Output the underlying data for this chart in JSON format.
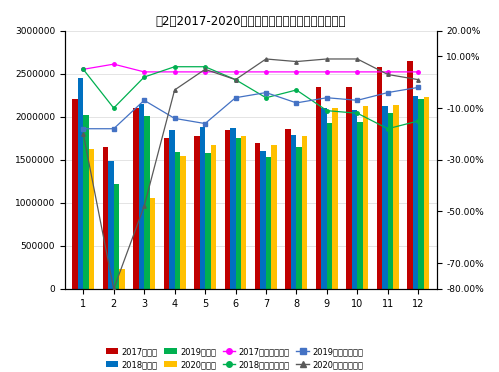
{
  "title": "图2：2017-2020年月度乘用车销量及同比变化情况",
  "months": [
    1,
    2,
    3,
    4,
    5,
    6,
    7,
    8,
    9,
    10,
    11,
    12
  ],
  "sales_2017": [
    2200000,
    1650000,
    2100000,
    1750000,
    1780000,
    1850000,
    1700000,
    1860000,
    2350000,
    2350000,
    2580000,
    2650000
  ],
  "sales_2018": [
    2450000,
    1480000,
    2150000,
    1850000,
    1880000,
    1870000,
    1600000,
    1790000,
    2100000,
    2080000,
    2120000,
    2240000
  ],
  "sales_2019": [
    2020000,
    1220000,
    2010000,
    1590000,
    1580000,
    1750000,
    1530000,
    1650000,
    1930000,
    1940000,
    2040000,
    2200000
  ],
  "sales_2020": [
    1630000,
    230000,
    1060000,
    1540000,
    1670000,
    1780000,
    1670000,
    1780000,
    2100000,
    2120000,
    2130000,
    2230000
  ],
  "yoy_2017": [
    0.05,
    0.07,
    0.04,
    0.04,
    0.04,
    0.04,
    0.04,
    0.04,
    0.04,
    0.04,
    0.04,
    0.04
  ],
  "yoy_2018": [
    0.05,
    -0.1,
    0.02,
    0.06,
    0.06,
    0.01,
    -0.06,
    -0.03,
    -0.11,
    -0.12,
    -0.18,
    -0.15
  ],
  "yoy_2019": [
    -0.18,
    -0.18,
    -0.07,
    -0.14,
    -0.16,
    -0.06,
    -0.04,
    -0.08,
    -0.06,
    -0.07,
    -0.04,
    -0.02
  ],
  "yoy_2020": [
    -0.2,
    -0.8,
    -0.48,
    -0.03,
    0.05,
    0.01,
    0.09,
    0.08,
    0.09,
    0.09,
    0.03,
    0.01
  ],
  "color_2017": "#C00000",
  "color_2018": "#0070C0",
  "color_2019": "#00B050",
  "color_2020": "#FFC000",
  "color_yoy_2017": "#FF00FF",
  "color_yoy_2018": "#00B050",
  "color_yoy_2019": "#4472C4",
  "color_yoy_2020": "#595959",
  "ylim_left": [
    0,
    3000000
  ],
  "ylim_right": [
    -0.8,
    0.2
  ],
  "yticks_left": [
    0,
    500000,
    1000000,
    1500000,
    2000000,
    2500000,
    3000000
  ],
  "yticks_right": [
    0.2,
    0.1,
    -0.1,
    -0.3,
    -0.5,
    -0.7,
    -0.8
  ],
  "legend_sales": [
    "2017年销量",
    "2018年销量",
    "2019年销量",
    "2020年销量"
  ],
  "legend_yoy": [
    "2017年同比增长率",
    "2018年同比增长率",
    "2019年同比增长率",
    "2020年同比增长率"
  ],
  "bar_width": 0.18
}
